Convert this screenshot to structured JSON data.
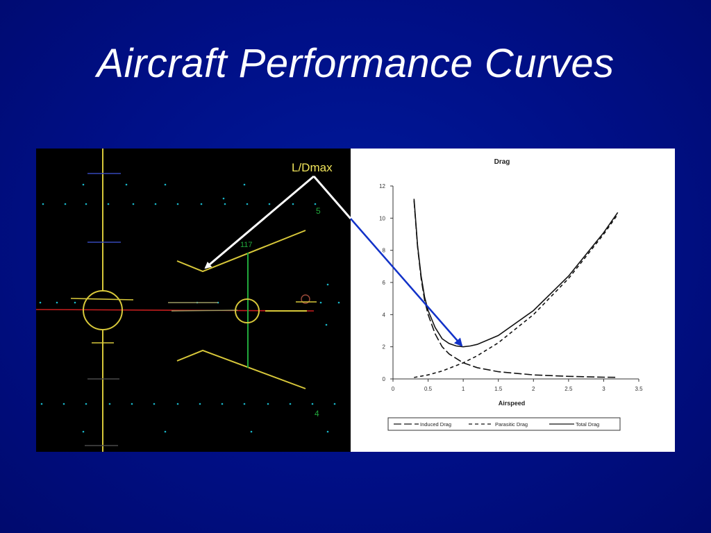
{
  "slide": {
    "title": "Aircraft Performance Curves"
  },
  "hud": {
    "annotation": "L/Dmax",
    "speed_value": "117",
    "pitch_upper": "5",
    "pitch_lower": "4"
  },
  "chart_data": {
    "type": "line",
    "title": "Drag",
    "xlabel": "Airspeed",
    "ylabel": "",
    "xlim": [
      0,
      3.5
    ],
    "ylim": [
      0,
      12
    ],
    "x_ticks": [
      "0",
      "0.5",
      "1",
      "1.5",
      "2",
      "2.5",
      "3",
      "3.5"
    ],
    "y_ticks": [
      "0",
      "2",
      "4",
      "6",
      "8",
      "10",
      "12"
    ],
    "grid": false,
    "legend_placement": "bottom",
    "series": [
      {
        "name": "Induced Drag",
        "style": "long-dash",
        "x": [
          0.3,
          0.35,
          0.4,
          0.45,
          0.5,
          0.6,
          0.7,
          0.8,
          1.0,
          1.2,
          1.5,
          2.0,
          2.5,
          3.0,
          3.2
        ],
        "y": [
          11.1,
          8.2,
          6.25,
          4.9,
          4.0,
          2.8,
          2.0,
          1.55,
          1.0,
          0.7,
          0.45,
          0.25,
          0.16,
          0.11,
          0.1
        ]
      },
      {
        "name": "Parasitic Drag",
        "style": "short-dash",
        "x": [
          0.3,
          0.5,
          0.7,
          1.0,
          1.2,
          1.5,
          2.0,
          2.5,
          3.0,
          3.2
        ],
        "y": [
          0.09,
          0.25,
          0.49,
          1.0,
          1.44,
          2.25,
          4.0,
          6.25,
          9.0,
          10.24
        ]
      },
      {
        "name": "Total Drag",
        "style": "solid",
        "x": [
          0.3,
          0.35,
          0.4,
          0.45,
          0.5,
          0.6,
          0.7,
          0.8,
          0.9,
          1.0,
          1.1,
          1.2,
          1.5,
          2.0,
          2.5,
          3.0,
          3.2
        ],
        "y": [
          11.2,
          8.3,
          6.4,
          5.1,
          4.25,
          3.2,
          2.5,
          2.2,
          2.05,
          2.0,
          2.05,
          2.15,
          2.7,
          4.25,
          6.4,
          9.1,
          10.35
        ]
      }
    ]
  },
  "colors": {
    "background": "#000f86",
    "title_text": "#ffffff",
    "hud_yellow": "#d8c83a",
    "hud_green": "#21a83c",
    "hud_red": "#c81e1e",
    "hud_dot": "#19b6c8",
    "annotation_text": "#f1e55a",
    "pointer_white": "#ffffff",
    "pointer_blue": "#1232c8"
  }
}
